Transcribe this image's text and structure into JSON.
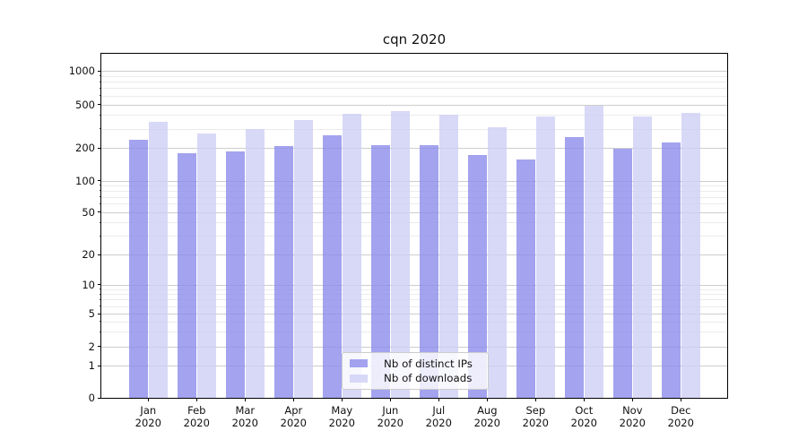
{
  "window": {
    "background": "#ffffff"
  },
  "chart_data": {
    "type": "bar",
    "title": "cqn 2020",
    "yscale": "symlog",
    "grid": "horizontal major and minor gridlines",
    "categories": [
      "Jan",
      "Feb",
      "Mar",
      "Apr",
      "May",
      "Jun",
      "Jul",
      "Aug",
      "Sep",
      "Oct",
      "Nov",
      "Dec"
    ],
    "category_year": "2020",
    "yticks": [
      0,
      1,
      2,
      5,
      10,
      20,
      50,
      100,
      200,
      500,
      1000
    ],
    "ylim": [
      0,
      1400
    ],
    "xlabel": "",
    "ylabel": "",
    "legend_position": "lower center",
    "series": [
      {
        "name": "Nb of distinct IPs",
        "color": "#8c8ceb",
        "values": [
          235,
          178,
          186,
          207,
          260,
          210,
          212,
          171,
          156,
          251,
          196,
          226
        ]
      },
      {
        "name": "Nb of downloads",
        "color": "#cecef5",
        "values": [
          345,
          272,
          300,
          360,
          415,
          435,
          400,
          310,
          385,
          492,
          388,
          420
        ]
      }
    ]
  }
}
